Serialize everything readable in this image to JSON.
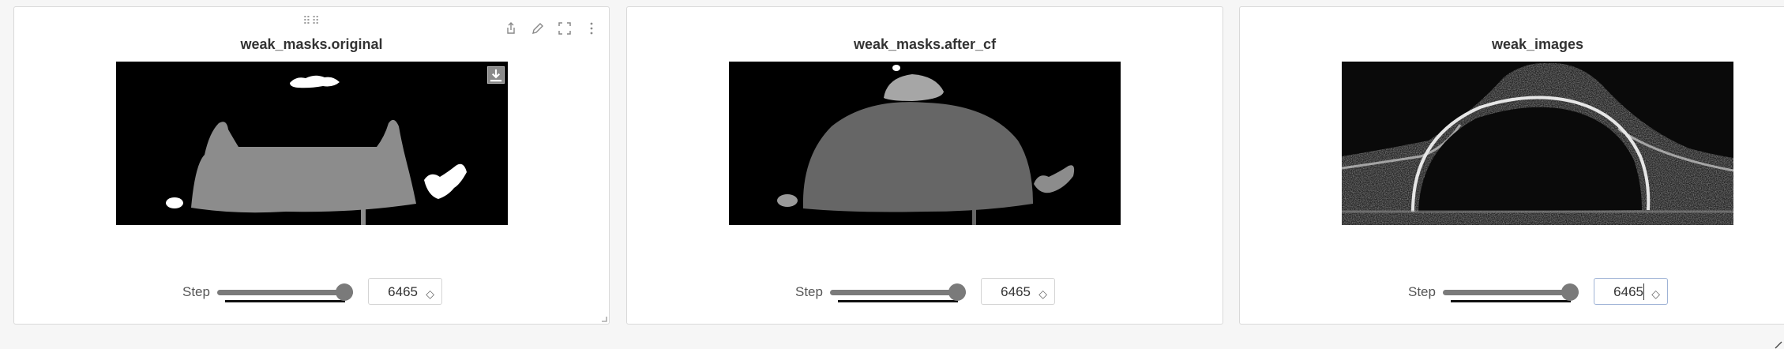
{
  "panels": [
    {
      "title": "weak_masks.original",
      "step_label": "Step",
      "step_value": "6465",
      "slider_fraction": 1.0
    },
    {
      "title": "weak_masks.after_cf",
      "step_label": "Step",
      "step_value": "6465",
      "slider_fraction": 1.0
    },
    {
      "title": "weak_images",
      "step_label": "Step",
      "step_value": "6465",
      "slider_fraction": 1.0
    }
  ],
  "toolbar": {
    "icons": [
      "share-icon",
      "edit-icon",
      "fullscreen-icon",
      "more-options-icon"
    ],
    "drag_handle": "⠿⠿"
  },
  "colors": {
    "panel_bg": "#ffffff",
    "page_bg": "#f6f6f6",
    "slider": "#7a7a7a",
    "mask_light": "#8c8c8c",
    "mask_bright": "#ffffff"
  }
}
